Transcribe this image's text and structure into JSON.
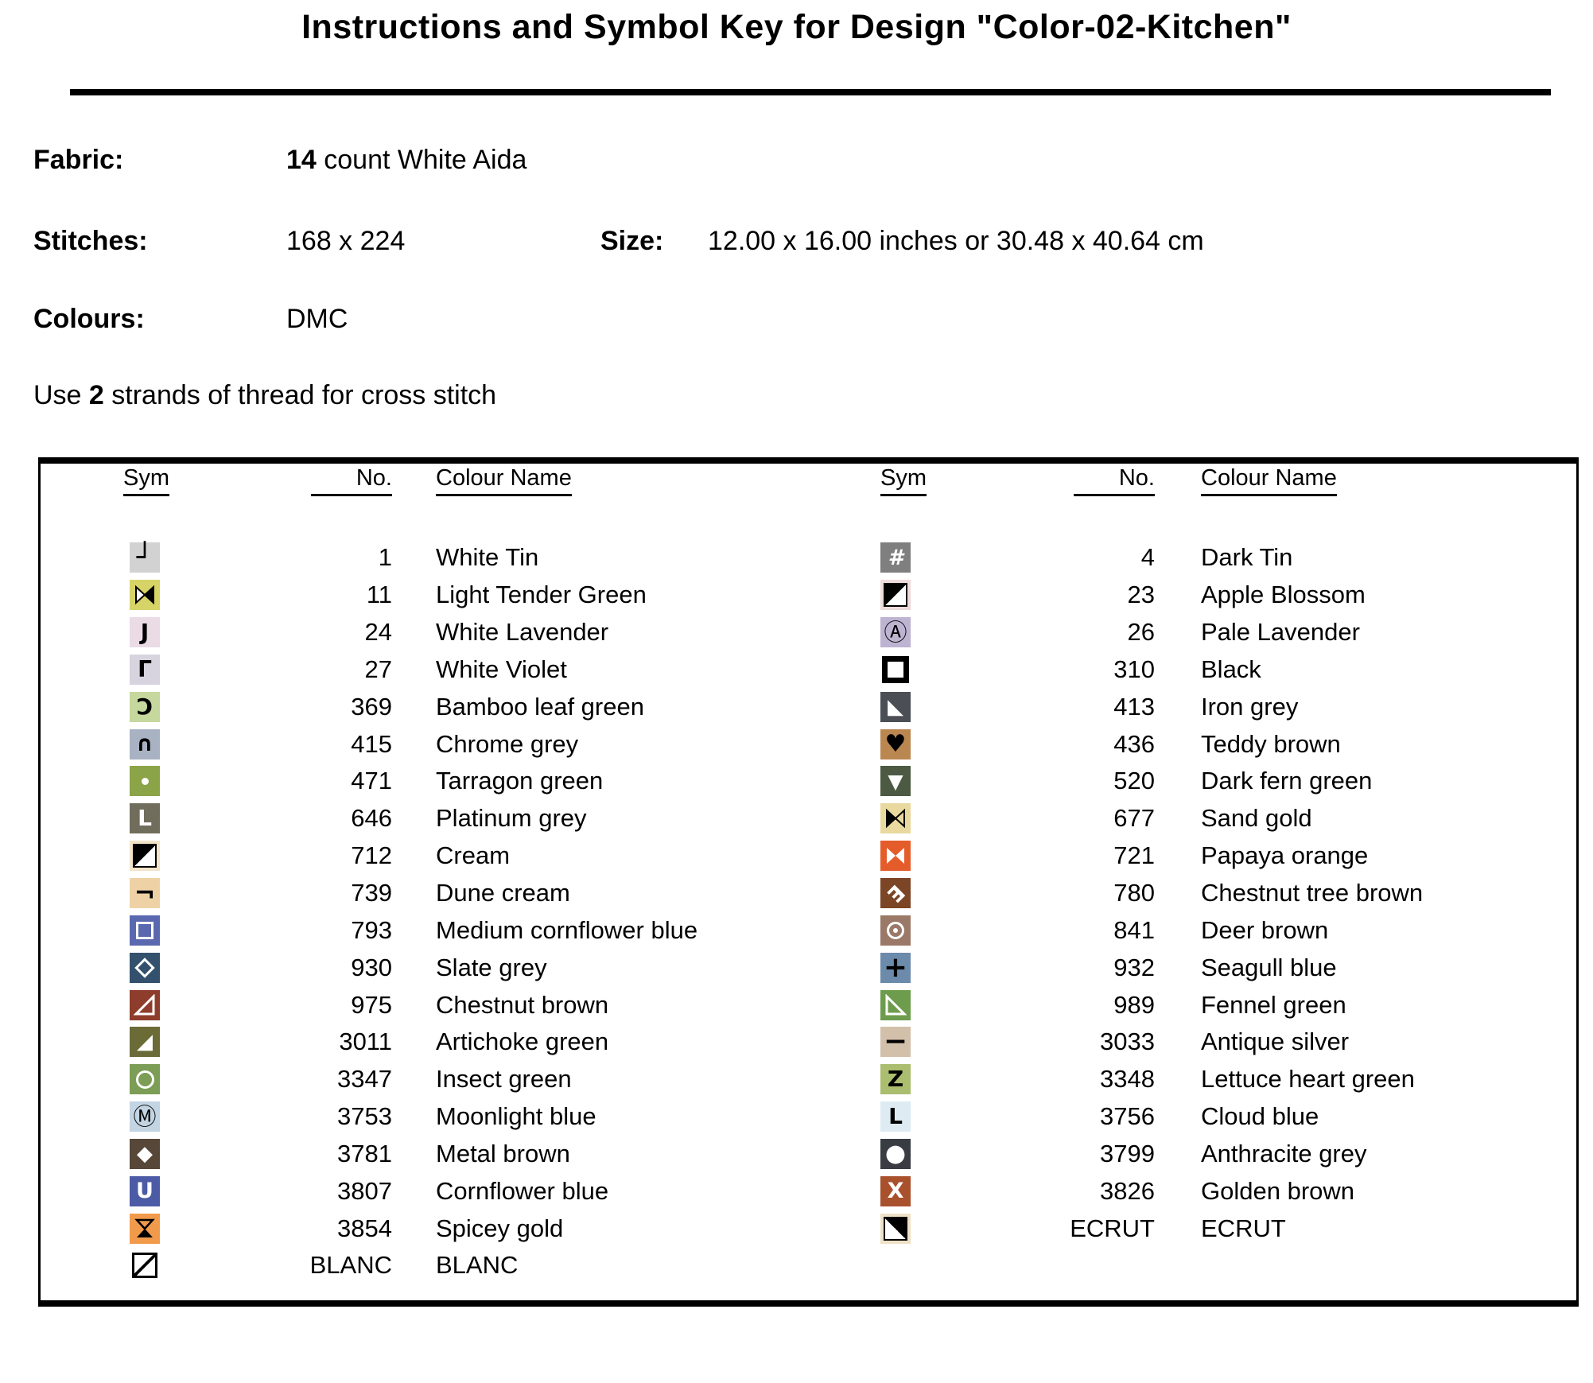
{
  "title": "Instructions and Symbol Key for Design \"Color-02-Kitchen\"",
  "info": {
    "fabric_label": "Fabric:",
    "fabric_bold": "14",
    "fabric_rest": " count White Aida",
    "stitches_label": "Stitches:",
    "stitches_value": "168 x 224",
    "size_label": "Size:",
    "size_value": "12.00 x 16.00 inches or 30.48 x 40.64 cm",
    "colours_label": "Colours:",
    "colours_value": "DMC",
    "strands_prefix": "Use ",
    "strands_bold": "2",
    "strands_suffix": " strands of thread for cross stitch"
  },
  "key_table": {
    "headers": {
      "sym": "Sym",
      "no": "No.",
      "name": "Colour Name"
    },
    "left_rows": [
      {
        "no": "1",
        "name": "White Tin",
        "sym": {
          "shape": "glyph",
          "glyph": "┘",
          "fg": "#000000",
          "bg": "#d2d2d2",
          "size": 34,
          "weight": 700,
          "icon": "corner-bottom-right"
        }
      },
      {
        "no": "11",
        "name": "Light Tender Green",
        "sym": {
          "shape": "bowtie",
          "bg": "#d6d367",
          "left": "#ffffff",
          "right": "#000000",
          "stroke": "#000000",
          "icon": "bowtie-right-filled"
        }
      },
      {
        "no": "24",
        "name": "White Lavender",
        "sym": {
          "shape": "glyph",
          "glyph": "J",
          "fg": "#000000",
          "bg": "#eadbe5",
          "size": 28,
          "weight": 800,
          "icon": "letter-J"
        }
      },
      {
        "no": "27",
        "name": "White Violet",
        "sym": {
          "shape": "glyph",
          "glyph": "Γ",
          "fg": "#000000",
          "bg": "#d8d4df",
          "size": 28,
          "weight": 800,
          "icon": "letter-gamma"
        }
      },
      {
        "no": "369",
        "name": "Bamboo leaf green",
        "sym": {
          "shape": "glyph",
          "glyph": "Ɔ",
          "fg": "#000000",
          "bg": "#c6d89d",
          "size": 28,
          "weight": 800,
          "icon": "open-c"
        }
      },
      {
        "no": "415",
        "name": "Chrome grey",
        "sym": {
          "shape": "glyph",
          "glyph": "∩",
          "fg": "#000000",
          "bg": "#a9b2c2",
          "size": 27,
          "weight": 800,
          "icon": "cap-arch"
        }
      },
      {
        "no": "471",
        "name": "Tarragon green",
        "sym": {
          "shape": "dot",
          "fg": "#ffffff",
          "bg": "#8ba447",
          "icon": "white-dot"
        }
      },
      {
        "no": "646",
        "name": "Platinum grey",
        "sym": {
          "shape": "glyph",
          "glyph": "L",
          "fg": "#ffffff",
          "bg": "#716d5d",
          "size": 28,
          "weight": 900,
          "icon": "white-L-blob"
        }
      },
      {
        "no": "712",
        "name": "Cream",
        "sym": {
          "shape": "diag-ul",
          "bg": "#f2e4c8",
          "icon": "square-upper-left-black"
        }
      },
      {
        "no": "739",
        "name": "Dune cream",
        "sym": {
          "shape": "glyph",
          "glyph": "¬",
          "fg": "#000000",
          "bg": "#eed2a6",
          "size": 32,
          "weight": 900,
          "icon": "corner-top-right"
        }
      },
      {
        "no": "793",
        "name": "Medium cornflower blue",
        "sym": {
          "shape": "square-outline",
          "fg": "#ffffff",
          "bg": "#5a69af",
          "icon": "white-square-outline"
        }
      },
      {
        "no": "930",
        "name": "Slate grey",
        "sym": {
          "shape": "diamond-outline",
          "fg": "#ffffff",
          "bg": "#33506d",
          "icon": "white-diamond-outline"
        }
      },
      {
        "no": "975",
        "name": "Chestnut brown",
        "sym": {
          "shape": "tri-outline-br",
          "fg": "#ffffff",
          "bg": "#8e3c2b",
          "icon": "triangle-outline-bottom-right"
        }
      },
      {
        "no": "3011",
        "name": "Artichoke green",
        "sym": {
          "shape": "glyph",
          "glyph": "◢",
          "fg": "#ffffff",
          "bg": "#6b6b38",
          "size": 26,
          "weight": 400,
          "icon": "triangle-filled-bottom-right"
        }
      },
      {
        "no": "3347",
        "name": "Insect green",
        "sym": {
          "shape": "circle-outline",
          "fg": "#ffffff",
          "bg": "#7c9d55",
          "icon": "white-circle-outline"
        }
      },
      {
        "no": "3753",
        "name": "Moonlight blue",
        "sym": {
          "shape": "glyph",
          "glyph": "Ⓜ",
          "fg": "#000000",
          "bg": "#c3d4e3",
          "size": 29,
          "weight": 400,
          "icon": "circled-M"
        }
      },
      {
        "no": "3781",
        "name": "Metal brown",
        "sym": {
          "shape": "glyph",
          "glyph": "◆",
          "fg": "#ffffff",
          "bg": "#574739",
          "size": 26,
          "weight": 400,
          "icon": "white-diamond-filled"
        }
      },
      {
        "no": "3807",
        "name": "Cornflower blue",
        "sym": {
          "shape": "glyph",
          "glyph": "U",
          "fg": "#ffffff",
          "bg": "#4c5ba5",
          "size": 27,
          "weight": 900,
          "icon": "letter-U"
        }
      },
      {
        "no": "3854",
        "name": "Spicey gold",
        "sym": {
          "shape": "hourglass",
          "fg": "#000000",
          "bg": "#f29a4b",
          "icon": "hourglass"
        }
      },
      {
        "no": "BLANC",
        "name": "BLANC",
        "sym": {
          "shape": "diag-line",
          "bg": "#ffffff",
          "icon": "square-diagonal-line"
        }
      }
    ],
    "right_rows": [
      {
        "no": "4",
        "name": "Dark Tin",
        "sym": {
          "shape": "glyph",
          "glyph": "#",
          "fg": "#ffffff",
          "bg": "#7f7f7f",
          "size": 27,
          "weight": 700,
          "italic": true,
          "icon": "hash"
        }
      },
      {
        "no": "23",
        "name": "Apple Blossom",
        "sym": {
          "shape": "diag-ul",
          "bg": "#eedadb",
          "icon": "square-upper-left-black"
        }
      },
      {
        "no": "26",
        "name": "Pale Lavender",
        "sym": {
          "shape": "glyph",
          "glyph": "Ⓐ",
          "fg": "#000000",
          "bg": "#bcb4d1",
          "size": 29,
          "weight": 400,
          "icon": "circled-A"
        }
      },
      {
        "no": "310",
        "name": "Black",
        "sym": {
          "shape": "inner-square",
          "bg": "#ffffff",
          "icon": "thick-black-square-outline"
        }
      },
      {
        "no": "413",
        "name": "Iron grey",
        "sym": {
          "shape": "glyph",
          "glyph": "◣",
          "fg": "#ffffff",
          "bg": "#4b4f55",
          "size": 26,
          "weight": 400,
          "icon": "triangle-filled-bottom-left"
        }
      },
      {
        "no": "436",
        "name": "Teddy brown",
        "sym": {
          "shape": "glyph",
          "glyph": "♥",
          "fg": "#000000",
          "bg": "#bb8751",
          "size": 30,
          "weight": 400,
          "icon": "heart"
        }
      },
      {
        "no": "520",
        "name": "Dark fern green",
        "sym": {
          "shape": "glyph",
          "glyph": "▼",
          "fg": "#ffffff",
          "bg": "#4c5a43",
          "size": 25,
          "weight": 400,
          "icon": "triangle-down-white"
        }
      },
      {
        "no": "677",
        "name": "Sand gold",
        "sym": {
          "shape": "bowtie",
          "bg": "#e9d99e",
          "left": "#000000",
          "right": "#e9d99e",
          "stroke": "#000000",
          "icon": "bowtie-left-filled"
        }
      },
      {
        "no": "721",
        "name": "Papaya orange",
        "sym": {
          "shape": "bowtie",
          "bg": "#e55c2b",
          "left": "#ffffff",
          "right": "#ffffff",
          "stroke": "none",
          "icon": "bowtie-white"
        }
      },
      {
        "no": "780",
        "name": "Chestnut tree brown",
        "sym": {
          "shape": "glyph",
          "glyph": "E",
          "fg": "#ffffff",
          "bg": "#7b4526",
          "size": 26,
          "weight": 900,
          "rotate": 135,
          "icon": "rotated-E"
        }
      },
      {
        "no": "841",
        "name": "Deer brown",
        "sym": {
          "shape": "target",
          "fg": "#ffffff",
          "bg": "#9b7968",
          "icon": "target-circle-dot"
        }
      },
      {
        "no": "932",
        "name": "Seagull blue",
        "sym": {
          "shape": "glyph",
          "glyph": "+",
          "fg": "#000000",
          "bg": "#6c8bab",
          "size": 36,
          "weight": 900,
          "icon": "plus"
        }
      },
      {
        "no": "989",
        "name": "Fennel green",
        "sym": {
          "shape": "tri-outline-bl",
          "fg": "#ffffff",
          "bg": "#6e9c4d",
          "icon": "triangle-outline-bottom-left"
        }
      },
      {
        "no": "3033",
        "name": "Antique silver",
        "sym": {
          "shape": "glyph",
          "glyph": "−",
          "fg": "#000000",
          "bg": "#d2c0aa",
          "size": 36,
          "weight": 900,
          "icon": "minus"
        }
      },
      {
        "no": "3348",
        "name": "Lettuce heart green",
        "sym": {
          "shape": "glyph",
          "glyph": "Z",
          "fg": "#000000",
          "bg": "#abbd6e",
          "size": 28,
          "weight": 900,
          "icon": "letter-Z"
        }
      },
      {
        "no": "3756",
        "name": "Cloud blue",
        "sym": {
          "shape": "glyph",
          "glyph": "L",
          "fg": "#000000",
          "bg": "#deebf2",
          "size": 28,
          "weight": 900,
          "icon": "letter-L"
        }
      },
      {
        "no": "3799",
        "name": "Anthracite grey",
        "sym": {
          "shape": "glyph",
          "glyph": "●",
          "fg": "#ffffff",
          "bg": "#393d43",
          "size": 30,
          "weight": 400,
          "icon": "white-circle-filled"
        }
      },
      {
        "no": "3826",
        "name": "Golden brown",
        "sym": {
          "shape": "glyph",
          "glyph": "X",
          "fg": "#ffffff",
          "bg": "#a9512d",
          "size": 27,
          "weight": 900,
          "icon": "letter-X"
        }
      },
      {
        "no": "ECRUT",
        "name": "ECRUT",
        "sym": {
          "shape": "diag-ur",
          "bg": "#eee1c6",
          "icon": "square-upper-right-black"
        }
      }
    ]
  }
}
